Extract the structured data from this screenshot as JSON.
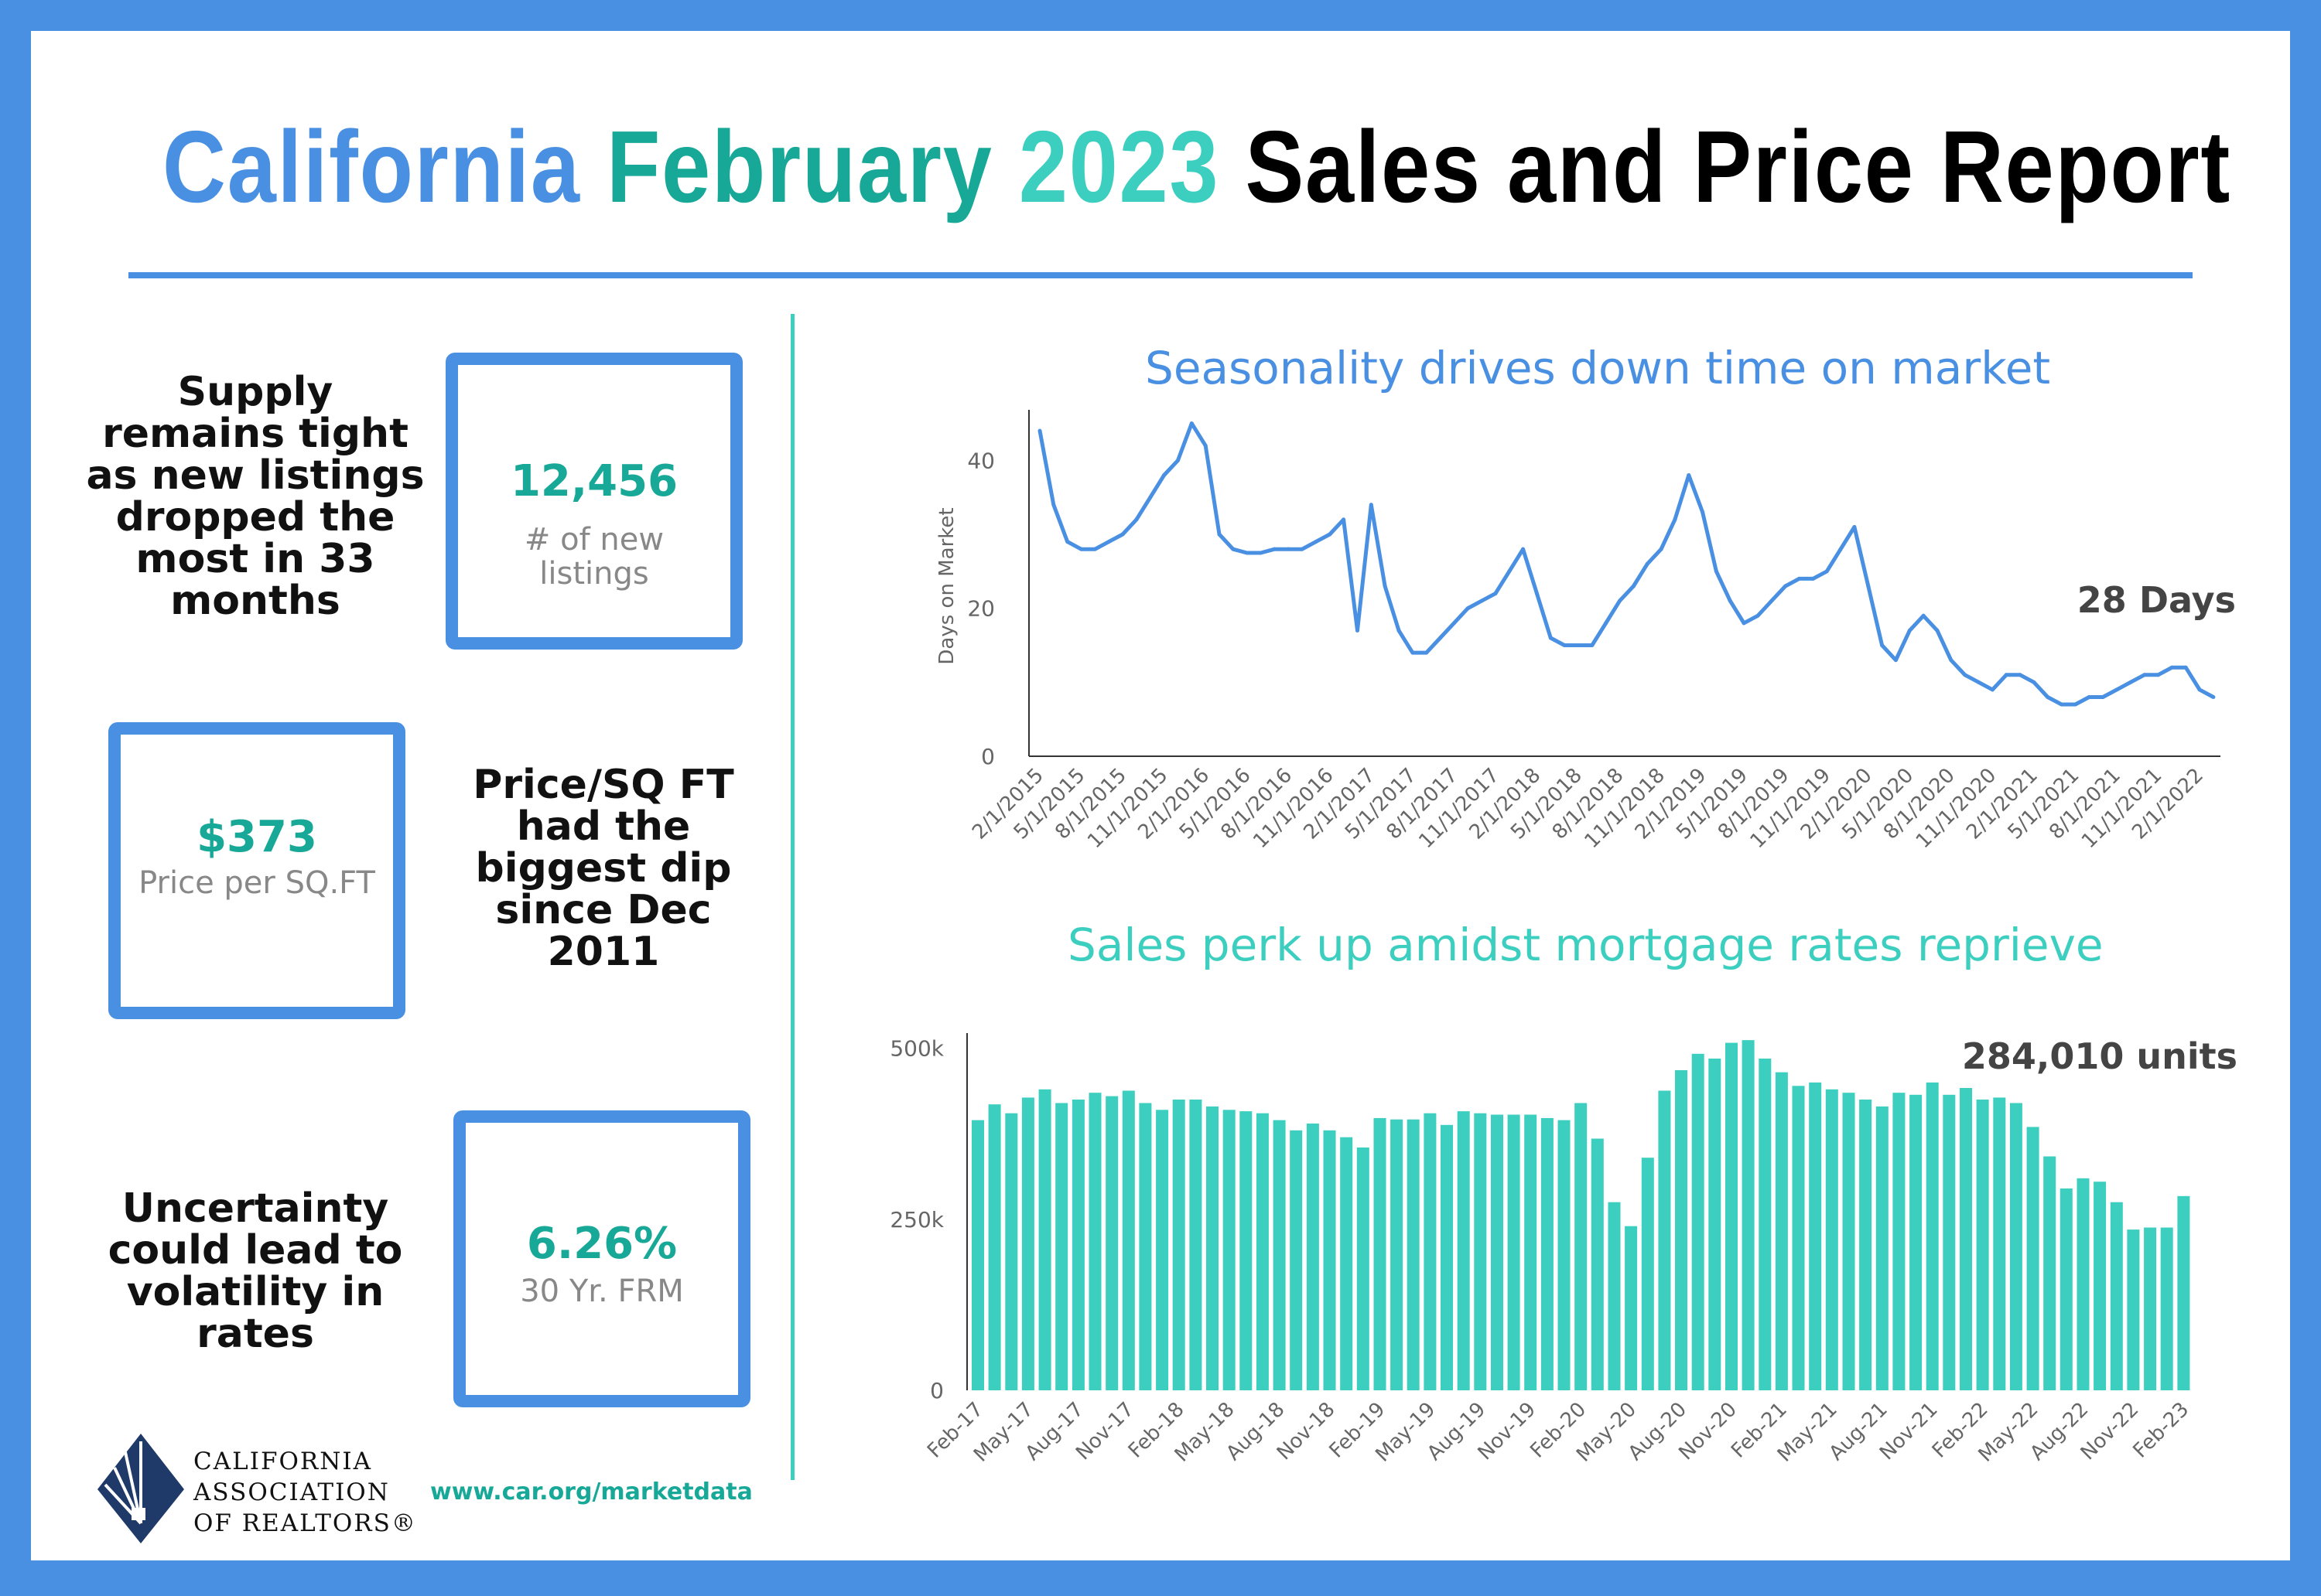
{
  "header": {
    "title_part1": "California",
    "title_part2": "February",
    "title_part3": "2023",
    "title_part4": "Sales and Price Report"
  },
  "stats": {
    "listings": {
      "label": "Supply remains tight as new listings dropped the most in 33 months",
      "value": "12,456",
      "sub": "# of new listings"
    },
    "price": {
      "label": "Price/SQ FT had the biggest dip since Dec 2011",
      "value": "$373",
      "sub": "Price per SQ.FT"
    },
    "rates": {
      "label": "Uncertainty could lead to volatility in rates",
      "value": "6.26%",
      "sub": "30 Yr. FRM"
    }
  },
  "footer": {
    "logo_line1": "CALIFORNIA",
    "logo_line2": "ASSOCIATION",
    "logo_line3": "OF REALTORS®",
    "url": "www.car.org/marketdata"
  },
  "colors": {
    "blue": "#4a90e2",
    "teal": "#17a897",
    "teal_light": "#3ccfc0",
    "bar": "#3ccfc0"
  },
  "chart_data": [
    {
      "type": "line",
      "title": "Seasonality drives down time on market",
      "ylabel": "Days on Market",
      "annotation": "28 Days",
      "ylim": [
        0,
        46
      ],
      "yticks": [
        0,
        20,
        40
      ],
      "xtick_labels": [
        "2/1/2015",
        "5/1/2015",
        "8/1/2015",
        "11/1/2015",
        "2/1/2016",
        "5/1/2016",
        "8/1/2016",
        "11/1/2016",
        "2/1/2017",
        "5/1/2017",
        "8/1/2017",
        "11/1/2017",
        "2/1/2018",
        "5/1/2018",
        "8/1/2018",
        "11/1/2018",
        "2/1/2019",
        "5/1/2019",
        "8/1/2019",
        "11/1/2019",
        "2/1/2020",
        "5/1/2020",
        "8/1/2020",
        "11/1/2020",
        "2/1/2021",
        "5/1/2021",
        "8/1/2021",
        "11/1/2021",
        "2/1/2022"
      ],
      "values": [
        44,
        34,
        29,
        28,
        28,
        29,
        30,
        32,
        35,
        38,
        40,
        45,
        42,
        30,
        28,
        27.5,
        27.5,
        28,
        28,
        28,
        29,
        30,
        32,
        17,
        34,
        23,
        17,
        14,
        14,
        16,
        18,
        20,
        21,
        22,
        25,
        28,
        22,
        16,
        15,
        15,
        15,
        18,
        21,
        23,
        26,
        28,
        32,
        38,
        33,
        25,
        21,
        18,
        19,
        21,
        23,
        24,
        24,
        25,
        28,
        31,
        23,
        15,
        13,
        17,
        19,
        17,
        13,
        11,
        10,
        9,
        11,
        11,
        10,
        8,
        7,
        7,
        8,
        8,
        9,
        10,
        11,
        11,
        12,
        12,
        9,
        8
      ]
    },
    {
      "type": "bar",
      "title": "Sales perk up amidst mortgage rates reprieve",
      "annotation": "284,010 units",
      "ylim": [
        0,
        520000
      ],
      "ytick_labels": [
        "0",
        "250k",
        "500k"
      ],
      "xtick_labels": [
        "Feb-17",
        "May-17",
        "Aug-17",
        "Nov-17",
        "Feb-18",
        "May-18",
        "Aug-18",
        "Nov-18",
        "Feb-19",
        "May-19",
        "Aug-19",
        "Nov-19",
        "Feb-20",
        "May-20",
        "Aug-20",
        "Nov-20",
        "Feb-21",
        "May-21",
        "Aug-21",
        "Nov-21",
        "Feb-22",
        "May-22",
        "Aug-22",
        "Nov-22",
        "Feb-23"
      ],
      "values": [
        395000,
        418000,
        405000,
        428000,
        440000,
        420000,
        425000,
        435000,
        430000,
        438000,
        420000,
        410000,
        425000,
        425000,
        415000,
        410000,
        408000,
        405000,
        395000,
        380000,
        390000,
        380000,
        370000,
        355000,
        398000,
        396000,
        396000,
        405000,
        388000,
        408000,
        405000,
        403000,
        403000,
        403000,
        398000,
        395000,
        420000,
        368000,
        275000,
        240000,
        340000,
        438000,
        468000,
        492000,
        485000,
        508000,
        512000,
        485000,
        465000,
        445000,
        450000,
        440000,
        435000,
        425000,
        415000,
        435000,
        432000,
        450000,
        432000,
        442000,
        425000,
        428000,
        420000,
        385000,
        342000,
        295000,
        310000,
        305000,
        275000,
        235000,
        238000,
        238000,
        284010
      ]
    }
  ]
}
